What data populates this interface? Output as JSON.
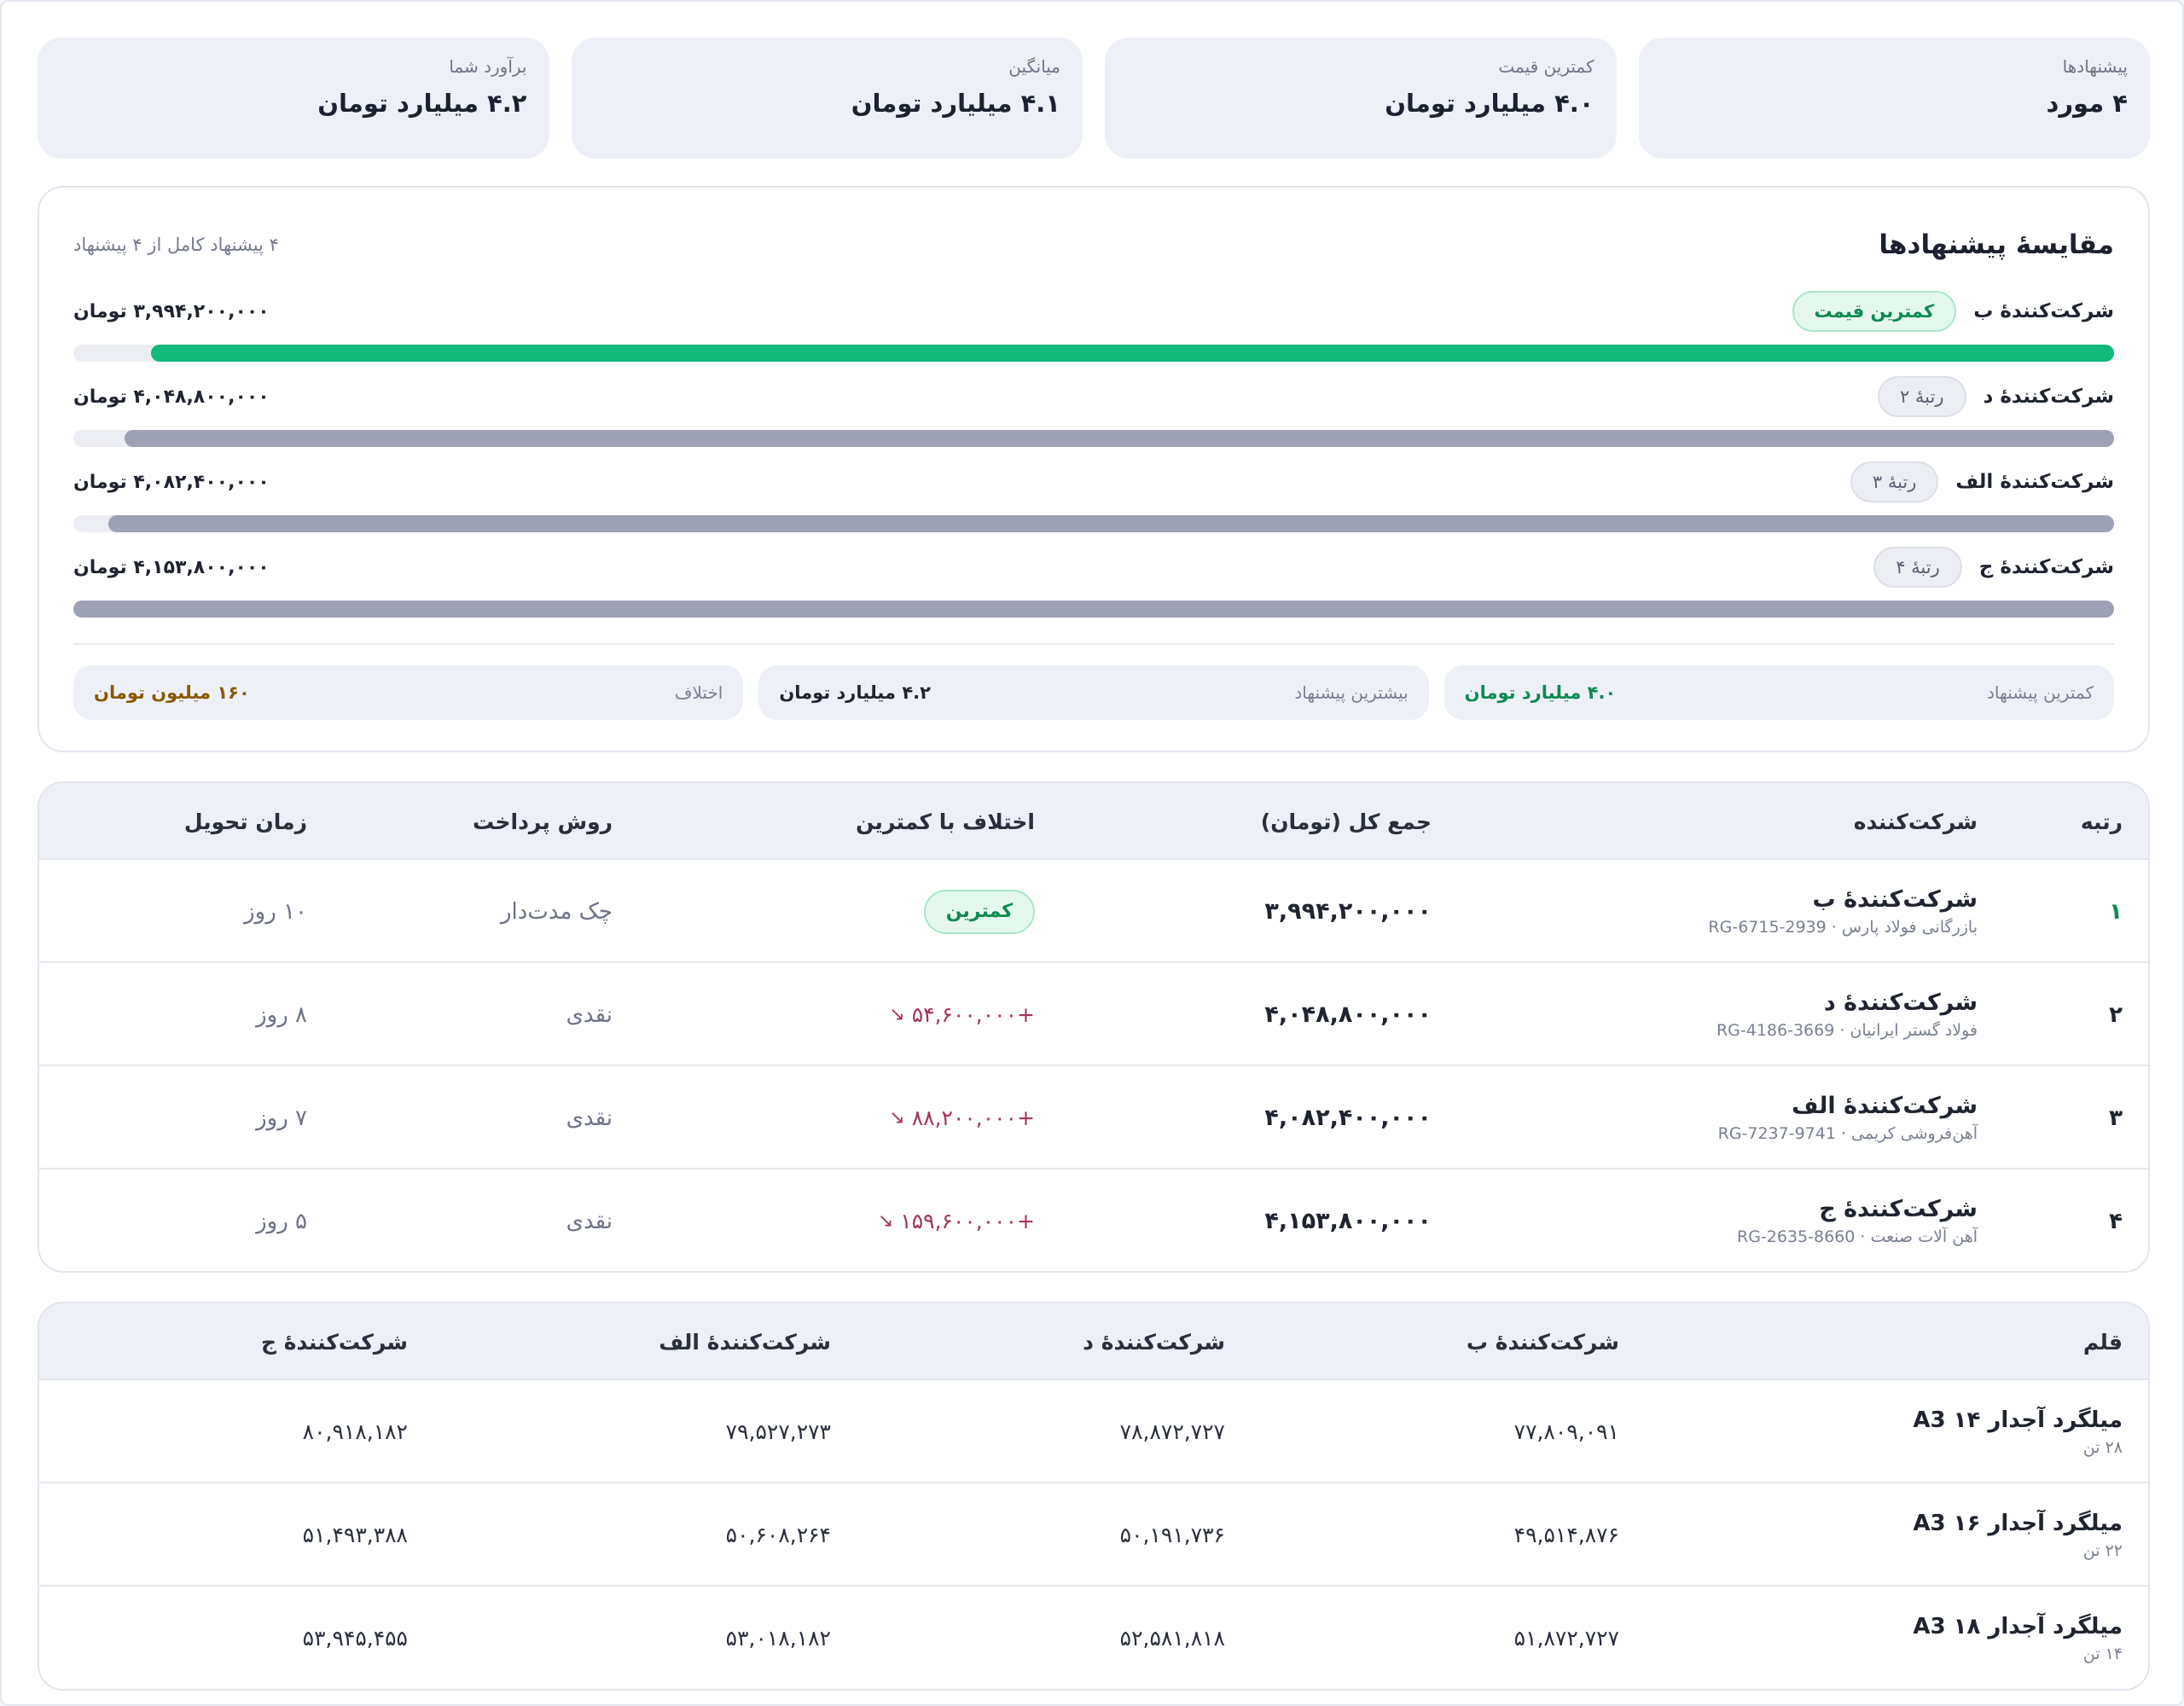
{
  "accent_color": "#12b97a",
  "stats": [
    {
      "label": "پیشنهادها",
      "value": "۴ مورد"
    },
    {
      "label": "کمترین قیمت",
      "value": "۴.۰ میلیارد تومان"
    },
    {
      "label": "میانگین",
      "value": "۴.۱ میلیارد تومان"
    },
    {
      "label": "برآورد شما",
      "value": "۴.۲ میلیارد تومان"
    }
  ],
  "comparison": {
    "title": "مقایسهٔ پیشنهادها",
    "subtitle": "۴ پیشنهاد کامل از ۴ پیشنهاد",
    "bids": [
      {
        "name": "شرکت‌کنندهٔ ب",
        "badge": "کمترین قیمت",
        "best": true,
        "amount": "۳,۹۹۴,۲۰۰,۰۰۰ تومان",
        "bar_percent": 96.2
      },
      {
        "name": "شرکت‌کنندهٔ د",
        "badge": "رتبهٔ ۲",
        "best": false,
        "amount": "۴,۰۴۸,۸۰۰,۰۰۰ تومان",
        "bar_percent": 97.5
      },
      {
        "name": "شرکت‌کنندهٔ الف",
        "badge": "رتبهٔ ۳",
        "best": false,
        "amount": "۴,۰۸۲,۴۰۰,۰۰۰ تومان",
        "bar_percent": 98.3
      },
      {
        "name": "شرکت‌کنندهٔ ج",
        "badge": "رتبهٔ ۴",
        "best": false,
        "amount": "۴,۱۵۳,۸۰۰,۰۰۰ تومان",
        "bar_percent": 100
      }
    ],
    "footer": [
      {
        "label": "کمترین پیشنهاد",
        "value": "۴.۰ میلیارد تومان",
        "color": "#0d8a52"
      },
      {
        "label": "بیشترین پیشنهاد",
        "value": "۴.۲ میلیارد تومان",
        "color": "#1f2430"
      },
      {
        "label": "اختلاف",
        "value": "۱۶۰ میلیون تومان",
        "color": "#8a5a00"
      }
    ]
  },
  "bids_table": {
    "headers": {
      "rank": "رتبه",
      "vendor": "شرکت‌کننده",
      "total": "جمع کل (تومان)",
      "diff": "اختلاف با کمترین",
      "payment": "روش پرداخت",
      "delivery": "زمان تحویل"
    },
    "rows": [
      {
        "rank": "۱",
        "name": "شرکت‌کنندهٔ ب",
        "sub": "بازرگانی فولاد پارس · RG-6715-2939",
        "total": "۳,۹۹۴,۲۰۰,۰۰۰",
        "diff": "",
        "min_badge": "کمترین",
        "payment": "چک مدت‌دار",
        "delivery": "۱۰ روز"
      },
      {
        "rank": "۲",
        "name": "شرکت‌کنندهٔ د",
        "sub": "فولاد گستر ایرانیان · RG-4186-3669",
        "total": "۴,۰۴۸,۸۰۰,۰۰۰",
        "diff": "+۵۴,۶۰۰,۰۰۰",
        "min_badge": "",
        "payment": "نقدی",
        "delivery": "۸ روز"
      },
      {
        "rank": "۳",
        "name": "شرکت‌کنندهٔ الف",
        "sub": "آهن‌فروشی کریمی · RG-7237-9741",
        "total": "۴,۰۸۲,۴۰۰,۰۰۰",
        "diff": "+۸۸,۲۰۰,۰۰۰",
        "min_badge": "",
        "payment": "نقدی",
        "delivery": "۷ روز"
      },
      {
        "rank": "۴",
        "name": "شرکت‌کنندهٔ ج",
        "sub": "آهن آلات صنعت · RG-2635-8660",
        "total": "۴,۱۵۳,۸۰۰,۰۰۰",
        "diff": "+۱۵۹,۶۰۰,۰۰۰",
        "min_badge": "",
        "payment": "نقدی",
        "delivery": "۵ روز"
      }
    ]
  },
  "items_table": {
    "headers": {
      "item": "قلم",
      "v1": "شرکت‌کنندهٔ ب",
      "v2": "شرکت‌کنندهٔ د",
      "v3": "شرکت‌کنندهٔ الف",
      "v4": "شرکت‌کنندهٔ ج"
    },
    "rows": [
      {
        "name": "میلگرد آجدار ۱۴ A3",
        "qty": "۲۸ تن",
        "v1": "۷۷,۸۰۹,۰۹۱",
        "v2": "۷۸,۸۷۲,۷۲۷",
        "v3": "۷۹,۵۲۷,۲۷۳",
        "v4": "۸۰,۹۱۸,۱۸۲"
      },
      {
        "name": "میلگرد آجدار ۱۶ A3",
        "qty": "۲۲ تن",
        "v1": "۴۹,۵۱۴,۸۷۶",
        "v2": "۵۰,۱۹۱,۷۳۶",
        "v3": "۵۰,۶۰۸,۲۶۴",
        "v4": "۵۱,۴۹۳,۳۸۸"
      },
      {
        "name": "میلگرد آجدار ۱۸ A3",
        "qty": "۱۴ تن",
        "v1": "۵۱,۸۷۲,۷۲۷",
        "v2": "۵۲,۵۸۱,۸۱۸",
        "v3": "۵۳,۰۱۸,۱۸۲",
        "v4": "۵۳,۹۴۵,۴۵۵"
      }
    ]
  }
}
